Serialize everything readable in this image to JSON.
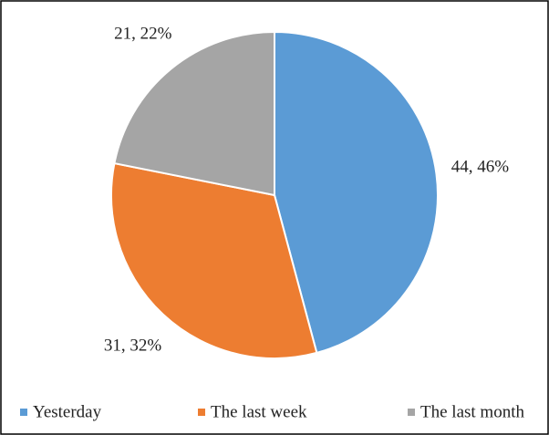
{
  "chart_data": {
    "type": "pie",
    "categories": [
      "Yesterday",
      "The last week",
      "The last month"
    ],
    "values": [
      44,
      31,
      21
    ],
    "value_labels": [
      "44, 46%",
      "31, 32%",
      "21, 22%"
    ],
    "colors": [
      "#5b9bd5",
      "#ed7d31",
      "#a5a5a5"
    ],
    "legend": "bottom"
  }
}
